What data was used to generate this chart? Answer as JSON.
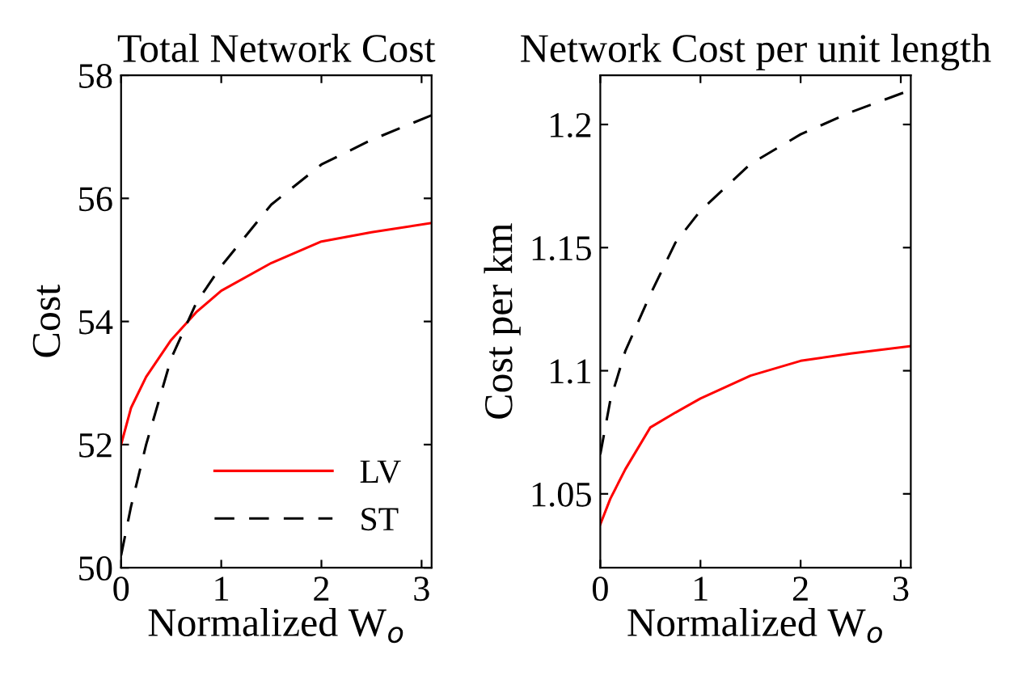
{
  "chart_data": [
    {
      "type": "line",
      "title": "Total Network Cost",
      "xlabel": "Normalized W$_{o}$",
      "ylabel": "Cost",
      "xlim": [
        0,
        3.1
      ],
      "ylim": [
        50,
        58
      ],
      "xticks": [
        0,
        1,
        2,
        3
      ],
      "yticks": [
        50,
        52,
        54,
        56,
        58
      ],
      "legend": "bottom right",
      "grid": false,
      "x": [
        0,
        0.1,
        0.25,
        0.5,
        0.75,
        1,
        1.5,
        2,
        2.5,
        3.1
      ],
      "series": [
        {
          "name": "LV",
          "color": "#ff0000",
          "line_style": "solid",
          "values": [
            52.0,
            52.6,
            53.1,
            53.7,
            54.15,
            54.5,
            54.95,
            55.3,
            55.45,
            55.6
          ]
        },
        {
          "name": "ST",
          "color": "#000000",
          "line_style": "dashed",
          "values": [
            50.2,
            51.0,
            52.0,
            53.4,
            54.3,
            54.9,
            55.9,
            56.55,
            56.95,
            57.35
          ]
        }
      ]
    },
    {
      "type": "line",
      "title": "Network Cost per unit length",
      "xlabel": "Normalized W$_{o}$",
      "ylabel": "Cost per km",
      "xlim": [
        0,
        3.1
      ],
      "ylim": [
        1.02,
        1.22
      ],
      "xticks": [
        0,
        1,
        2,
        3
      ],
      "yticks": [
        1.05,
        1.1,
        1.15,
        1.2
      ],
      "grid": false,
      "x": [
        0,
        0.1,
        0.25,
        0.5,
        0.75,
        1,
        1.5,
        2,
        2.5,
        3.1
      ],
      "series": [
        {
          "color": "#ff0000",
          "line_style": "solid",
          "values": [
            1.0376,
            1.048,
            1.06,
            1.077,
            1.083,
            1.0887,
            1.098,
            1.104,
            1.107,
            1.11
          ]
        },
        {
          "color": "#000000",
          "line_style": "dashed",
          "values": [
            1.066,
            1.088,
            1.108,
            1.131,
            1.152,
            1.165,
            1.184,
            1.196,
            1.205,
            1.214
          ]
        }
      ]
    }
  ]
}
